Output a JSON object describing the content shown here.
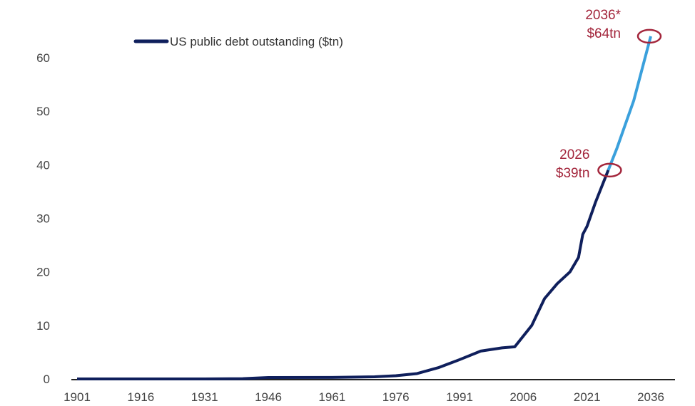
{
  "chart_data": {
    "type": "line",
    "title": "",
    "xlabel": "",
    "ylabel": "",
    "xlim": [
      1901,
      2036
    ],
    "ylim": [
      0,
      60
    ],
    "x_ticks": [
      "1901",
      "1916",
      "1931",
      "1946",
      "1961",
      "1976",
      "1991",
      "2006",
      "2021",
      "2036"
    ],
    "y_ticks": [
      "0",
      "10",
      "20",
      "30",
      "40",
      "50",
      "60"
    ],
    "grid": false,
    "legend": {
      "position": "top-left",
      "entries": [
        "US public debt outstanding ($tn)"
      ]
    },
    "colors": {
      "historical": "#0f1f5c",
      "projection": "#3aa0dc",
      "annotation": "#a3253b"
    },
    "series": [
      {
        "name": "US public debt outstanding ($tn)",
        "x": [
          1901,
          1916,
          1931,
          1940,
          1946,
          1961,
          1971,
          1976,
          1981,
          1986,
          1991,
          1996,
          2001,
          2004,
          2008,
          2011,
          2014,
          2017,
          2019,
          2020,
          2021,
          2023,
          2026
        ],
        "y": [
          0,
          0,
          0,
          0.05,
          0.27,
          0.29,
          0.4,
          0.6,
          1.0,
          2.1,
          3.6,
          5.2,
          5.8,
          6.0,
          10.0,
          15.0,
          17.8,
          20.0,
          22.7,
          27.0,
          28.5,
          33.0,
          39.0
        ]
      },
      {
        "name": "projection",
        "x": [
          2026,
          2028,
          2030,
          2032,
          2034,
          2036
        ],
        "y": [
          39,
          43,
          47.5,
          52,
          58,
          64
        ]
      }
    ],
    "annotations": [
      {
        "x": 2026,
        "y": 39,
        "line1": "2026",
        "line2": "$39tn"
      },
      {
        "x": 2036,
        "y": 64,
        "line1": "2036*",
        "line2": "$64tn"
      }
    ]
  }
}
